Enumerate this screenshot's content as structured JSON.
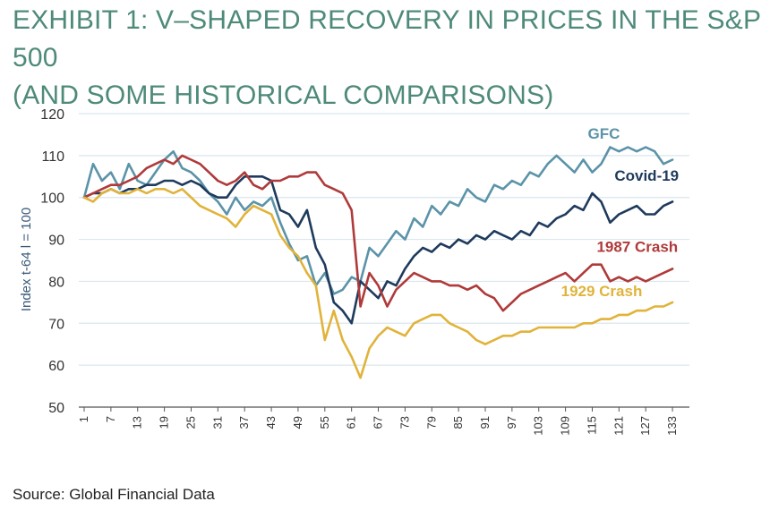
{
  "title_line1": "EXHIBIT 1: V–SHAPED RECOVERY IN PRICES IN THE S&P 500",
  "title_line2": "(AND SOME HISTORICAL COMPARISONS)",
  "source": "Source: Global Financial Data",
  "chart_data": {
    "type": "line",
    "ylabel": "Index t-64 l = 100",
    "ylim": [
      50,
      120
    ],
    "yticks": [
      120,
      110,
      100,
      90,
      80,
      70,
      60,
      50
    ],
    "xlim": [
      1,
      136
    ],
    "xticks": [
      1,
      7,
      13,
      19,
      25,
      31,
      37,
      43,
      49,
      55,
      61,
      67,
      73,
      79,
      85,
      91,
      97,
      103,
      109,
      115,
      121,
      127,
      133
    ],
    "grid": "horizontal",
    "series": [
      {
        "name": "GFC",
        "color": "#5b93a8",
        "points": [
          [
            1,
            100
          ],
          [
            3,
            108
          ],
          [
            5,
            104
          ],
          [
            7,
            106
          ],
          [
            9,
            102
          ],
          [
            11,
            108
          ],
          [
            13,
            104
          ],
          [
            15,
            103
          ],
          [
            17,
            106
          ],
          [
            19,
            109
          ],
          [
            21,
            111
          ],
          [
            23,
            107
          ],
          [
            25,
            106
          ],
          [
            27,
            104
          ],
          [
            29,
            101
          ],
          [
            31,
            99
          ],
          [
            33,
            96
          ],
          [
            35,
            100
          ],
          [
            37,
            97
          ],
          [
            39,
            99
          ],
          [
            41,
            98
          ],
          [
            43,
            100
          ],
          [
            45,
            94
          ],
          [
            47,
            89
          ],
          [
            49,
            85
          ],
          [
            51,
            86
          ],
          [
            53,
            79
          ],
          [
            55,
            82
          ],
          [
            57,
            77
          ],
          [
            59,
            78
          ],
          [
            61,
            81
          ],
          [
            63,
            80
          ],
          [
            65,
            88
          ],
          [
            67,
            86
          ],
          [
            69,
            89
          ],
          [
            71,
            92
          ],
          [
            73,
            90
          ],
          [
            75,
            95
          ],
          [
            77,
            93
          ],
          [
            79,
            98
          ],
          [
            81,
            96
          ],
          [
            83,
            99
          ],
          [
            85,
            98
          ],
          [
            87,
            102
          ],
          [
            89,
            100
          ],
          [
            91,
            99
          ],
          [
            93,
            103
          ],
          [
            95,
            102
          ],
          [
            97,
            104
          ],
          [
            99,
            103
          ],
          [
            101,
            106
          ],
          [
            103,
            105
          ],
          [
            105,
            108
          ],
          [
            107,
            110
          ],
          [
            109,
            108
          ],
          [
            111,
            106
          ],
          [
            113,
            109
          ],
          [
            115,
            106
          ],
          [
            117,
            108
          ],
          [
            119,
            112
          ],
          [
            121,
            111
          ],
          [
            123,
            112
          ],
          [
            125,
            111
          ],
          [
            127,
            112
          ],
          [
            129,
            111
          ],
          [
            131,
            108
          ],
          [
            133,
            109
          ]
        ]
      },
      {
        "name": "Covid-19",
        "color": "#1e3a5c",
        "points": [
          [
            1,
            100
          ],
          [
            3,
            101
          ],
          [
            5,
            101
          ],
          [
            7,
            102
          ],
          [
            9,
            101
          ],
          [
            11,
            102
          ],
          [
            13,
            102
          ],
          [
            15,
            103
          ],
          [
            17,
            103
          ],
          [
            19,
            104
          ],
          [
            21,
            104
          ],
          [
            23,
            103
          ],
          [
            25,
            104
          ],
          [
            27,
            103
          ],
          [
            29,
            101
          ],
          [
            31,
            100
          ],
          [
            33,
            100
          ],
          [
            35,
            103
          ],
          [
            37,
            105
          ],
          [
            39,
            105
          ],
          [
            41,
            105
          ],
          [
            43,
            104
          ],
          [
            45,
            97
          ],
          [
            47,
            96
          ],
          [
            49,
            93
          ],
          [
            51,
            97
          ],
          [
            53,
            88
          ],
          [
            55,
            84
          ],
          [
            57,
            75
          ],
          [
            59,
            73
          ],
          [
            61,
            70
          ],
          [
            63,
            80
          ],
          [
            65,
            78
          ],
          [
            67,
            76
          ],
          [
            69,
            80
          ],
          [
            71,
            79
          ],
          [
            73,
            83
          ],
          [
            75,
            86
          ],
          [
            77,
            88
          ],
          [
            79,
            87
          ],
          [
            81,
            89
          ],
          [
            83,
            88
          ],
          [
            85,
            90
          ],
          [
            87,
            89
          ],
          [
            89,
            91
          ],
          [
            91,
            90
          ],
          [
            93,
            92
          ],
          [
            95,
            91
          ],
          [
            97,
            90
          ],
          [
            99,
            92
          ],
          [
            101,
            91
          ],
          [
            103,
            94
          ],
          [
            105,
            93
          ],
          [
            107,
            95
          ],
          [
            109,
            96
          ],
          [
            111,
            98
          ],
          [
            113,
            97
          ],
          [
            115,
            101
          ],
          [
            117,
            99
          ],
          [
            119,
            94
          ],
          [
            121,
            96
          ],
          [
            123,
            97
          ],
          [
            125,
            98
          ],
          [
            127,
            96
          ],
          [
            129,
            96
          ],
          [
            131,
            98
          ],
          [
            133,
            99
          ]
        ]
      },
      {
        "name": "1987 Crash",
        "color": "#b03a3a",
        "points": [
          [
            1,
            100
          ],
          [
            3,
            101
          ],
          [
            5,
            102
          ],
          [
            7,
            103
          ],
          [
            9,
            103
          ],
          [
            11,
            104
          ],
          [
            13,
            105
          ],
          [
            15,
            107
          ],
          [
            17,
            108
          ],
          [
            19,
            109
          ],
          [
            21,
            108
          ],
          [
            23,
            110
          ],
          [
            25,
            109
          ],
          [
            27,
            108
          ],
          [
            29,
            106
          ],
          [
            31,
            104
          ],
          [
            33,
            103
          ],
          [
            35,
            104
          ],
          [
            37,
            106
          ],
          [
            39,
            103
          ],
          [
            41,
            102
          ],
          [
            43,
            104
          ],
          [
            45,
            104
          ],
          [
            47,
            105
          ],
          [
            49,
            105
          ],
          [
            51,
            106
          ],
          [
            53,
            106
          ],
          [
            55,
            103
          ],
          [
            57,
            102
          ],
          [
            59,
            101
          ],
          [
            61,
            97
          ],
          [
            63,
            74
          ],
          [
            65,
            82
          ],
          [
            67,
            79
          ],
          [
            69,
            74
          ],
          [
            71,
            78
          ],
          [
            73,
            80
          ],
          [
            75,
            82
          ],
          [
            77,
            81
          ],
          [
            79,
            80
          ],
          [
            81,
            80
          ],
          [
            83,
            79
          ],
          [
            85,
            79
          ],
          [
            87,
            78
          ],
          [
            89,
            79
          ],
          [
            91,
            77
          ],
          [
            93,
            76
          ],
          [
            95,
            73
          ],
          [
            97,
            75
          ],
          [
            99,
            77
          ],
          [
            101,
            78
          ],
          [
            103,
            79
          ],
          [
            105,
            80
          ],
          [
            107,
            81
          ],
          [
            109,
            82
          ],
          [
            111,
            80
          ],
          [
            113,
            82
          ],
          [
            115,
            84
          ],
          [
            117,
            84
          ],
          [
            119,
            80
          ],
          [
            121,
            81
          ],
          [
            123,
            80
          ],
          [
            125,
            81
          ],
          [
            127,
            80
          ],
          [
            129,
            81
          ],
          [
            131,
            82
          ],
          [
            133,
            83
          ]
        ]
      },
      {
        "name": "1929 Crash",
        "color": "#e0b33a",
        "points": [
          [
            1,
            100
          ],
          [
            3,
            99
          ],
          [
            5,
            101
          ],
          [
            7,
            102
          ],
          [
            9,
            101
          ],
          [
            11,
            101
          ],
          [
            13,
            102
          ],
          [
            15,
            101
          ],
          [
            17,
            102
          ],
          [
            19,
            102
          ],
          [
            21,
            101
          ],
          [
            23,
            102
          ],
          [
            25,
            100
          ],
          [
            27,
            98
          ],
          [
            29,
            97
          ],
          [
            31,
            96
          ],
          [
            33,
            95
          ],
          [
            35,
            93
          ],
          [
            37,
            96
          ],
          [
            39,
            98
          ],
          [
            41,
            97
          ],
          [
            43,
            96
          ],
          [
            45,
            91
          ],
          [
            47,
            88
          ],
          [
            49,
            86
          ],
          [
            51,
            82
          ],
          [
            53,
            79
          ],
          [
            55,
            66
          ],
          [
            57,
            73
          ],
          [
            59,
            66
          ],
          [
            61,
            62
          ],
          [
            63,
            57
          ],
          [
            65,
            64
          ],
          [
            67,
            67
          ],
          [
            69,
            69
          ],
          [
            71,
            68
          ],
          [
            73,
            67
          ],
          [
            75,
            70
          ],
          [
            77,
            71
          ],
          [
            79,
            72
          ],
          [
            81,
            72
          ],
          [
            83,
            70
          ],
          [
            85,
            69
          ],
          [
            87,
            68
          ],
          [
            89,
            66
          ],
          [
            91,
            65
          ],
          [
            93,
            66
          ],
          [
            95,
            67
          ],
          [
            97,
            67
          ],
          [
            99,
            68
          ],
          [
            101,
            68
          ],
          [
            103,
            69
          ],
          [
            105,
            69
          ],
          [
            107,
            69
          ],
          [
            109,
            69
          ],
          [
            111,
            69
          ],
          [
            113,
            70
          ],
          [
            115,
            70
          ],
          [
            117,
            71
          ],
          [
            119,
            71
          ],
          [
            121,
            72
          ],
          [
            123,
            72
          ],
          [
            125,
            73
          ],
          [
            127,
            73
          ],
          [
            129,
            74
          ],
          [
            131,
            74
          ],
          [
            133,
            75
          ]
        ]
      }
    ],
    "annotations": [
      {
        "text": "GFC",
        "series": "GFC",
        "x": 114,
        "y": 114
      },
      {
        "text": "Covid-19",
        "series": "Covid-19",
        "x": 120,
        "y": 104
      },
      {
        "text": "1987 Crash",
        "series": "1987 Crash",
        "x": 116,
        "y": 87
      },
      {
        "text": "1929 Crash",
        "series": "1929 Crash",
        "x": 108,
        "y": 76.5
      }
    ]
  }
}
